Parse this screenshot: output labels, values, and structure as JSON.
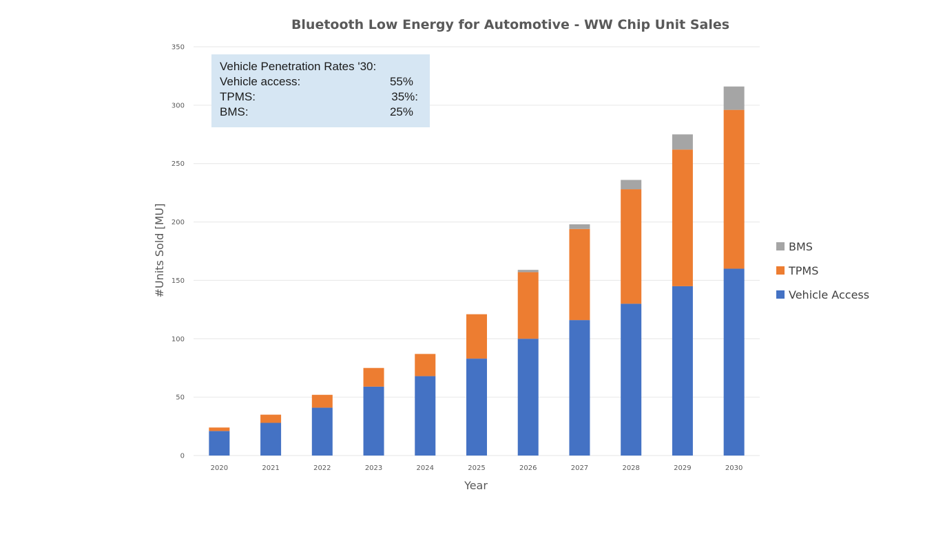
{
  "chart_data": {
    "type": "bar",
    "stacked": true,
    "title": "Bluetooth Low Energy for Automotive - WW Chip Unit Sales",
    "xlabel": "Year",
    "ylabel": "#Units Sold [MU]",
    "ylim": [
      0,
      350
    ],
    "yticks": [
      0,
      50,
      100,
      150,
      200,
      250,
      300,
      350
    ],
    "grid": true,
    "legend_position": "right",
    "categories": [
      "2020",
      "2021",
      "2022",
      "2023",
      "2024",
      "2025",
      "2026",
      "2027",
      "2028",
      "2029",
      "2030"
    ],
    "series": [
      {
        "name": "Vehicle Access",
        "color": "#4472C4",
        "values": [
          21,
          28,
          41,
          59,
          68,
          83,
          100,
          116,
          130,
          145,
          160
        ]
      },
      {
        "name": "TPMS",
        "color": "#ED7D31",
        "values": [
          3,
          7,
          11,
          16,
          19,
          38,
          57,
          78,
          98,
          117,
          136
        ]
      },
      {
        "name": "BMS",
        "color": "#A5A5A5",
        "values": [
          0,
          0,
          0,
          0,
          0,
          0,
          2,
          4,
          8,
          13,
          20
        ]
      }
    ],
    "legend_order": [
      "BMS",
      "TPMS",
      "Vehicle Access"
    ],
    "annotation": {
      "background": "#D6E6F3",
      "heading": "Vehicle Penetration Rates '30:",
      "rows": [
        {
          "label": "Vehicle access:",
          "value": "55%"
        },
        {
          "label": "TPMS:",
          "value": "35%:"
        },
        {
          "label": "BMS:",
          "value": "25%"
        }
      ]
    }
  }
}
